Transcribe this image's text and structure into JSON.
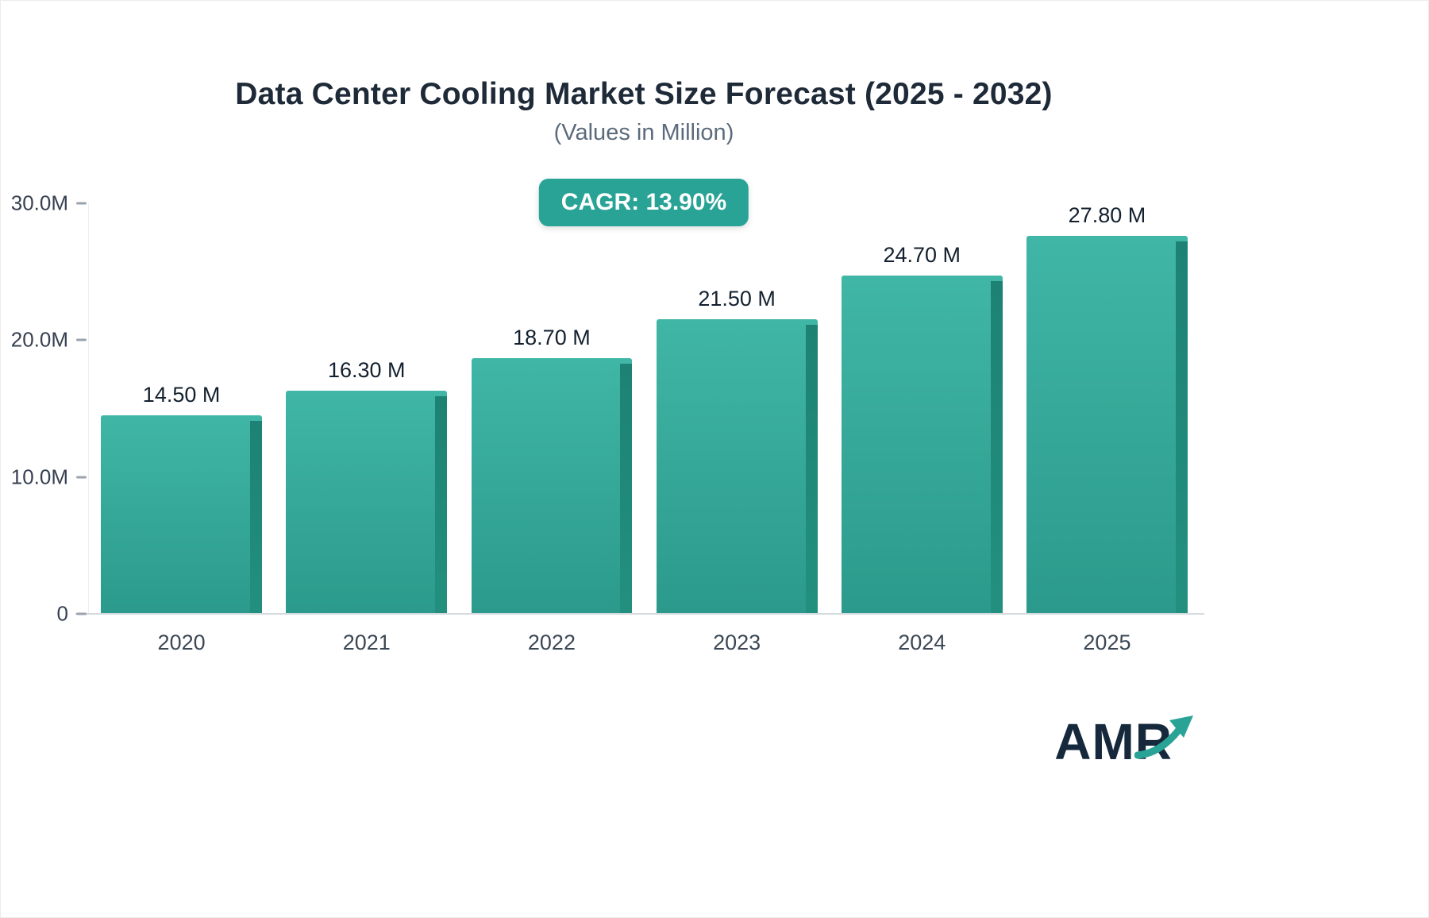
{
  "title": "Data Center Cooling Market Size Forecast (2025 - 2032)",
  "subtitle": "(Values in Million)",
  "cagr_badge": "CAGR: 13.90%",
  "logo_text": "AMR",
  "colors": {
    "accent_teal": "#2aa397",
    "bar_gradient_top": "#40b6a6",
    "bar_gradient_bottom": "#2b9a8c",
    "bar_side_shadow": "#1d8274",
    "title_text": "#1e2a38",
    "subtitle_text": "#5b6b7c",
    "axis_text": "#374151"
  },
  "chart_data": {
    "type": "bar",
    "title": "Data Center Cooling Market Size Forecast (2025 - 2032)",
    "subtitle": "(Values in Million)",
    "categories": [
      "2020",
      "2021",
      "2022",
      "2023",
      "2024",
      "2025"
    ],
    "values": [
      14.5,
      16.3,
      18.7,
      21.5,
      24.7,
      27.8
    ],
    "value_labels": [
      "14.50 M",
      "16.30 M",
      "18.70 M",
      "21.50 M",
      "24.70 M",
      "27.80 M"
    ],
    "xlabel": "",
    "ylabel": "",
    "ylim": [
      0,
      30
    ],
    "yticks": [
      {
        "value": 0,
        "label": "0"
      },
      {
        "value": 10,
        "label": "10.0M"
      },
      {
        "value": 20,
        "label": "20.0M"
      },
      {
        "value": 30,
        "label": "30.0M"
      }
    ],
    "grid": false,
    "legend": "none",
    "annotation": "CAGR: 13.90%"
  }
}
